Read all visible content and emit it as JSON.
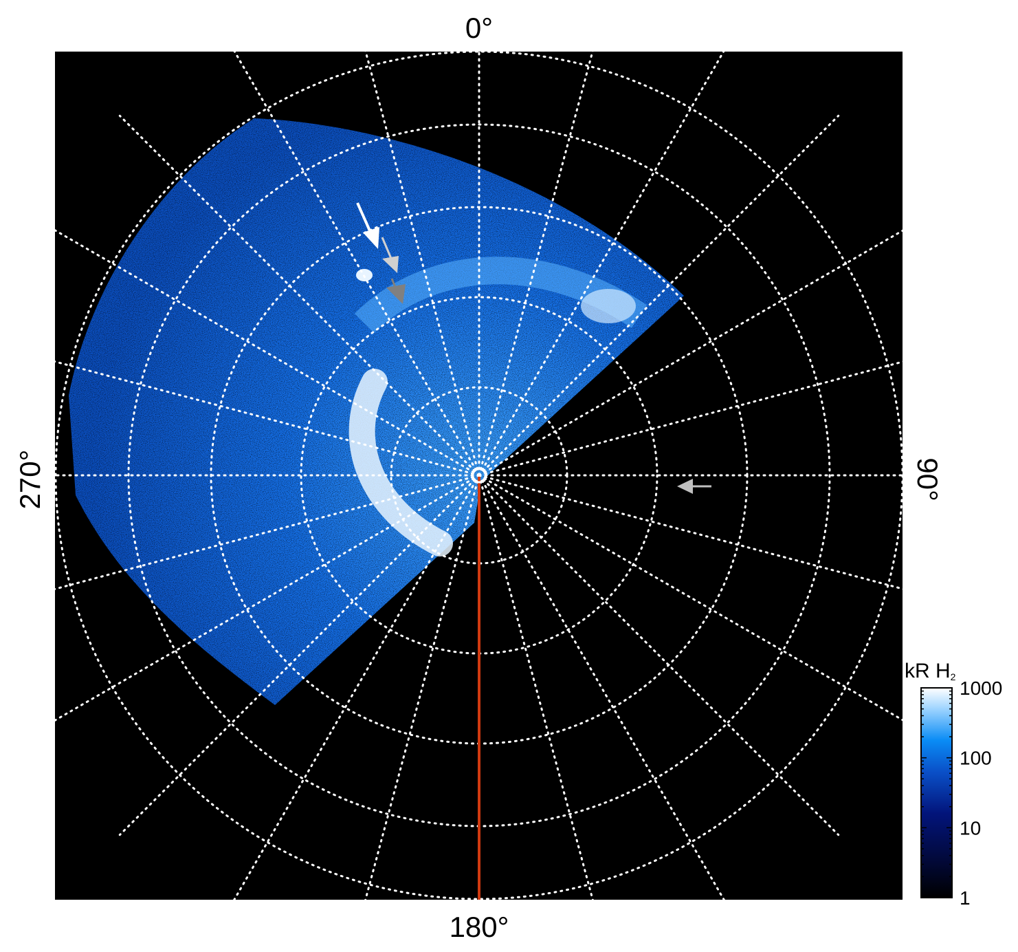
{
  "chart_data": {
    "type": "heatmap",
    "projection": "polar",
    "title": "",
    "angle_labels": {
      "top": "0°",
      "right": "90°",
      "bottom": "180°",
      "left": "270°"
    },
    "longitude_grid_step_deg": 15,
    "latitude_ring_count": 5,
    "grid": true,
    "grid_style": "dotted white",
    "highlight_meridian_deg": 180,
    "highlight_meridian_color": "#d03a10",
    "colorbar": {
      "label": "kR H",
      "label_subscript": "2",
      "scale": "log",
      "range": [
        1,
        1000
      ],
      "ticks": [
        "1",
        "10",
        "100",
        "1000"
      ],
      "colors": [
        "#000000",
        "#020a55",
        "#0a3fb0",
        "#0a8cf5",
        "#9ed4ff",
        "#ffffff"
      ],
      "placement": "bottom-right"
    },
    "annotations": [
      {
        "type": "arrow",
        "color": "#ffffff"
      },
      {
        "type": "arrow",
        "color": "#d0d0d0"
      },
      {
        "type": "arrow",
        "color": "#808080"
      },
      {
        "type": "arrow",
        "color": "#c0c0c0"
      }
    ]
  }
}
